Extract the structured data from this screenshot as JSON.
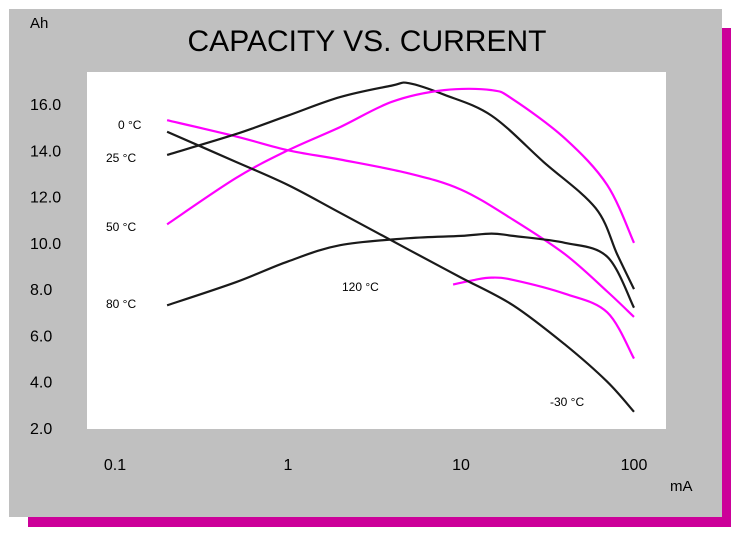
{
  "chart_data": {
    "type": "line",
    "title": "CAPACITY VS. CURRENT",
    "ylabel": "Ah",
    "xlabel": "mA",
    "xscale": "log",
    "xlim": [
      0.1,
      100
    ],
    "ylim": [
      2.0,
      16.0
    ],
    "xticks": [
      {
        "value": 0.1,
        "label": "0.1"
      },
      {
        "value": 1,
        "label": "1"
      },
      {
        "value": 10,
        "label": "10"
      },
      {
        "value": 100,
        "label": "100"
      }
    ],
    "yticks": [
      {
        "value": 16,
        "label": "16.0"
      },
      {
        "value": 14,
        "label": "14.0"
      },
      {
        "value": 12,
        "label": "12.0"
      },
      {
        "value": 10,
        "label": "10.0"
      },
      {
        "value": 8,
        "label": "8.0"
      },
      {
        "value": 6,
        "label": "6.0"
      },
      {
        "value": 4,
        "label": "4.0"
      },
      {
        "value": 2,
        "label": "2.0"
      }
    ],
    "grid": false,
    "legend": "none",
    "colors": {
      "black": "#1a1a1a",
      "magenta": "#ff00ff",
      "shadow": "#cc0099",
      "panel": "#c0c0c0"
    },
    "series": [
      {
        "name": "0 °C",
        "color": "#ff00ff",
        "points": [
          [
            0.2,
            15.3
          ],
          [
            0.5,
            14.6
          ],
          [
            1,
            14.0
          ],
          [
            2,
            13.6
          ],
          [
            5,
            13.0
          ],
          [
            10,
            12.3
          ],
          [
            20,
            11.0
          ],
          [
            40,
            9.5
          ],
          [
            70,
            7.9
          ],
          [
            100,
            6.8
          ]
        ]
      },
      {
        "name": "25 °C",
        "color": "#1a1a1a",
        "points": [
          [
            0.2,
            13.8
          ],
          [
            0.5,
            14.7
          ],
          [
            1,
            15.5
          ],
          [
            2,
            16.3
          ],
          [
            4,
            16.8
          ],
          [
            5,
            16.9
          ],
          [
            8,
            16.4
          ],
          [
            15,
            15.5
          ],
          [
            30,
            13.5
          ],
          [
            60,
            11.5
          ],
          [
            80,
            9.5
          ],
          [
            100,
            8.0
          ]
        ]
      },
      {
        "name": "50 °C",
        "color": "#ff00ff",
        "points": [
          [
            0.2,
            10.8
          ],
          [
            0.5,
            12.8
          ],
          [
            1,
            14.0
          ],
          [
            2,
            15.0
          ],
          [
            4,
            16.1
          ],
          [
            8,
            16.6
          ],
          [
            15,
            16.6
          ],
          [
            20,
            16.2
          ],
          [
            40,
            14.5
          ],
          [
            70,
            12.5
          ],
          [
            100,
            10.0
          ]
        ]
      },
      {
        "name": "80 °C",
        "color": "#1a1a1a",
        "points": [
          [
            0.2,
            7.3
          ],
          [
            0.5,
            8.3
          ],
          [
            1,
            9.2
          ],
          [
            2,
            9.9
          ],
          [
            5,
            10.2
          ],
          [
            10,
            10.3
          ],
          [
            15,
            10.4
          ],
          [
            20,
            10.3
          ],
          [
            40,
            10.0
          ],
          [
            70,
            9.4
          ],
          [
            100,
            7.2
          ]
        ]
      },
      {
        "name": "120 °C",
        "color": "#ff00ff",
        "points": [
          [
            9,
            8.2
          ],
          [
            12,
            8.4
          ],
          [
            15,
            8.5
          ],
          [
            20,
            8.4
          ],
          [
            40,
            7.8
          ],
          [
            70,
            7.0
          ],
          [
            100,
            5.0
          ]
        ]
      },
      {
        "name": "-30 °C",
        "color": "#1a1a1a",
        "points": [
          [
            0.2,
            14.8
          ],
          [
            0.5,
            13.5
          ],
          [
            1,
            12.5
          ],
          [
            2,
            11.3
          ],
          [
            5,
            9.7
          ],
          [
            10,
            8.5
          ],
          [
            20,
            7.3
          ],
          [
            40,
            5.6
          ],
          [
            70,
            4.0
          ],
          [
            100,
            2.7
          ]
        ]
      }
    ],
    "annotations": [
      {
        "text": "0 °C"
      },
      {
        "text": "25 °C"
      },
      {
        "text": "50 °C"
      },
      {
        "text": "80 °C"
      },
      {
        "text": "120 °C"
      },
      {
        "text": "-30 °C"
      }
    ]
  }
}
